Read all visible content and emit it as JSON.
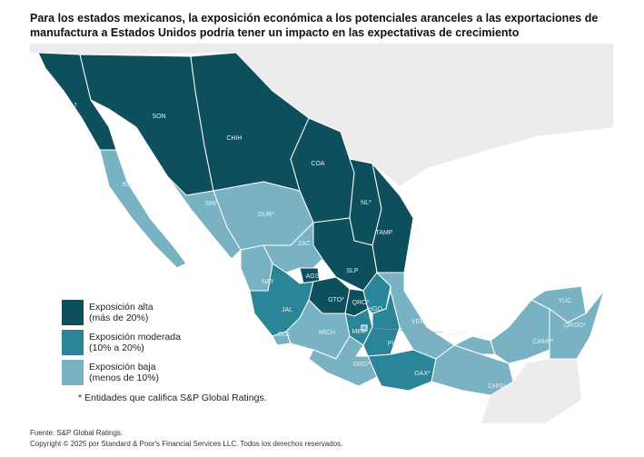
{
  "title_lines": [
    "Para los estados mexicanos, la exposición económica a los potenciales aranceles a las exportaciones de",
    "manufactura a Estados Unidos podría tener un impacto en las expectativas de crecimiento"
  ],
  "legend": {
    "items": [
      {
        "color": "#0d4f5c",
        "label_lines": [
          "Exposición alta",
          "(más de 20%)"
        ],
        "states": [
          {
            "label": "BJ"
          },
          {
            "label": "SON"
          },
          {
            "label": "CHIH"
          },
          {
            "label": "COA"
          },
          {
            "label": "NL*"
          },
          {
            "label": "TAMP"
          },
          {
            "label": "SLP"
          },
          {
            "label": "AGS"
          },
          {
            "label": "GTO*"
          },
          {
            "label": "QRO*"
          }
        ]
      },
      {
        "color": "#2b8599",
        "label_lines": [
          "Exposición moderada",
          "(10% a 20%)"
        ],
        "states": [
          {
            "label": "JAL"
          },
          {
            "label": "MEX"
          },
          {
            "label": "HGO"
          },
          {
            "label": "PUE"
          },
          {
            "label": "OAX*"
          }
        ]
      },
      {
        "color": "#79b2c2",
        "label_lines": [
          "Exposición baja",
          "(menos de 10%)"
        ],
        "states": [
          {
            "label": "BJS"
          },
          {
            "label": "SIN*"
          },
          {
            "label": "DUR*"
          },
          {
            "label": "ZAC"
          },
          {
            "label": "NAY"
          },
          {
            "label": "COL"
          },
          {
            "label": "MICH"
          },
          {
            "label": "CDMX"
          },
          {
            "label": "VER"
          },
          {
            "label": "GRO*"
          },
          {
            "label": "CHIS*"
          },
          {
            "label": "CAMP*"
          },
          {
            "label": "YUC"
          },
          {
            "label": "QROO*"
          }
        ]
      }
    ]
  },
  "footnote": "*  Entidades que califica S&P Global Ratings.",
  "source": "Fuente: S&P Global Ratings.",
  "copyright": "Copyright © 2025 por Standard & Poor's Financial Services LLC. Todos los derechos reservados."
}
